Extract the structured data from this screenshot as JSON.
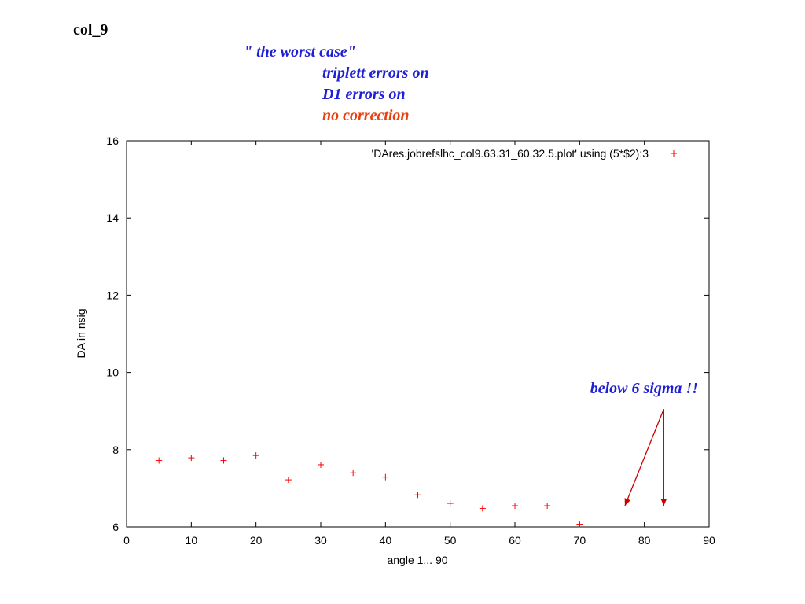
{
  "slide": {
    "label": "col_9",
    "notes": [
      {
        "text": "\" the worst case\"",
        "color": "#1f1fd6"
      },
      {
        "text": "triplett errors on",
        "color": "#1f1fd6"
      },
      {
        "text": "D1 errors on",
        "color": "#1f1fd6"
      },
      {
        "text": "no correction",
        "color": "#e8400f"
      }
    ]
  },
  "chart_data": {
    "type": "scatter",
    "title": "",
    "xlabel": "angle 1... 90",
    "ylabel": "DA in nsig",
    "xlim": [
      0,
      90
    ],
    "ylim": [
      6,
      16
    ],
    "xticks": [
      0,
      10,
      20,
      30,
      40,
      50,
      60,
      70,
      80,
      90
    ],
    "yticks": [
      6,
      8,
      10,
      12,
      14,
      16
    ],
    "grid": false,
    "legend_position": "top-right",
    "marker_color": "#ff0000",
    "series": [
      {
        "name": "'DAres.jobrefslhc_col9.63.31_60.32.5.plot' using (5*$2):3",
        "x": [
          5,
          10,
          15,
          20,
          25,
          30,
          35,
          40,
          45,
          50,
          55,
          60,
          65,
          70
        ],
        "y": [
          7.72,
          7.79,
          7.72,
          7.85,
          7.22,
          7.61,
          7.4,
          7.29,
          6.83,
          6.61,
          6.48,
          6.55,
          6.55,
          6.07
        ]
      }
    ],
    "annotation": {
      "text": "below 6 sigma !!",
      "color": "#1f1fd6",
      "arrow_color": "#cc0000",
      "arrows": [
        {
          "from": [
            83,
            9.05
          ],
          "to": [
            77,
            6.55
          ]
        },
        {
          "from": [
            83,
            9.05
          ],
          "to": [
            83,
            6.55
          ]
        }
      ]
    }
  }
}
